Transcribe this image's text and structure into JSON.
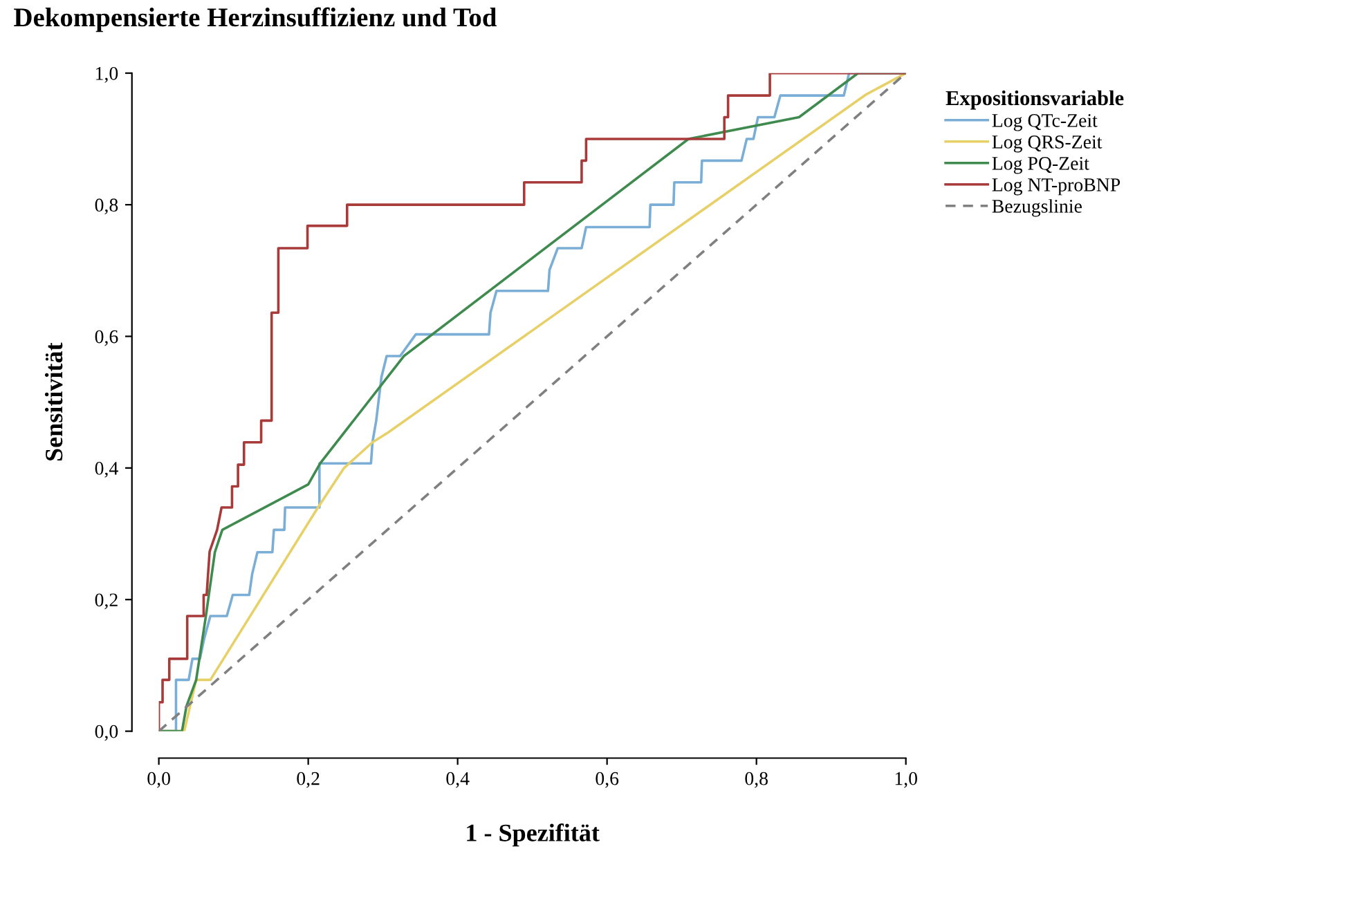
{
  "chart_data": {
    "type": "line",
    "title": "Dekompensierte Herzinsuffizienz und Tod",
    "xlabel": "1 - Spezifität",
    "ylabel": "Sensitivität",
    "legend_title": "Expositionsvariable",
    "legend": "right",
    "grid": false,
    "xlim": [
      0,
      1
    ],
    "ylim": [
      0,
      1
    ],
    "xticks": [
      {
        "value": 0,
        "label": "0,0"
      },
      {
        "value": 0.2,
        "label": "0,2"
      },
      {
        "value": 0.4,
        "label": "0,4"
      },
      {
        "value": 0.6,
        "label": "0,6"
      },
      {
        "value": 0.8,
        "label": "0,8"
      },
      {
        "value": 1,
        "label": "1,0"
      }
    ],
    "yticks": [
      {
        "value": 0,
        "label": "0,0"
      },
      {
        "value": 0.2,
        "label": "0,2"
      },
      {
        "value": 0.4,
        "label": "0,4"
      },
      {
        "value": 0.6,
        "label": "0,6"
      },
      {
        "value": 0.8,
        "label": "0,8"
      },
      {
        "value": 1,
        "label": "1,0"
      }
    ],
    "series": [
      {
        "name": "Log QTc-Zeit",
        "color": "#7aaed6",
        "line_style": "solid",
        "x": [
          0,
          0.023,
          0.023,
          0.04,
          0.045,
          0.055,
          0.061,
          0.069,
          0.091,
          0.099,
          0.121,
          0.125,
          0.132,
          0.152,
          0.154,
          0.168,
          0.169,
          0.215,
          0.215,
          0.284,
          0.286,
          0.291,
          0.298,
          0.305,
          0.323,
          0.344,
          0.442,
          0.444,
          0.452,
          0.521,
          0.523,
          0.534,
          0.566,
          0.572,
          0.657,
          0.658,
          0.689,
          0.69,
          0.726,
          0.727,
          0.78,
          0.787,
          0.796,
          0.802,
          0.824,
          0.832,
          0.917,
          0.924,
          1.0
        ],
        "values": [
          0,
          0,
          0.078,
          0.078,
          0.11,
          0.11,
          0.142,
          0.175,
          0.175,
          0.207,
          0.207,
          0.239,
          0.272,
          0.272,
          0.306,
          0.306,
          0.34,
          0.34,
          0.407,
          0.407,
          0.439,
          0.472,
          0.538,
          0.57,
          0.57,
          0.603,
          0.603,
          0.636,
          0.669,
          0.669,
          0.701,
          0.734,
          0.734,
          0.766,
          0.766,
          0.8,
          0.8,
          0.834,
          0.834,
          0.867,
          0.867,
          0.9,
          0.9,
          0.933,
          0.933,
          0.966,
          0.966,
          1.0,
          1.0
        ]
      },
      {
        "name": "Log QRS-Zeit",
        "color": "#e8d068",
        "line_style": "solid",
        "x": [
          0,
          0.034,
          0.05,
          0.069,
          0.213,
          0.248,
          0.286,
          0.307,
          0.946,
          1.0
        ],
        "values": [
          0,
          0,
          0.078,
          0.078,
          0.34,
          0.4,
          0.439,
          0.454,
          0.967,
          1.0
        ]
      },
      {
        "name": "Log PQ-Zeit",
        "color": "#3f8a4e",
        "line_style": "solid",
        "x": [
          0,
          0.031,
          0.037,
          0.05,
          0.063,
          0.075,
          0.085,
          0.2,
          0.216,
          0.328,
          0.709,
          0.857,
          0.936,
          1.0
        ],
        "values": [
          0,
          0,
          0.038,
          0.078,
          0.175,
          0.272,
          0.306,
          0.375,
          0.407,
          0.57,
          0.9,
          0.933,
          1.0,
          1.0
        ]
      },
      {
        "name": "Log NT-proBNP",
        "color": "#a83a3a",
        "line_style": "solid",
        "x": [
          0,
          0,
          0.005,
          0.005,
          0.014,
          0.014,
          0.038,
          0.038,
          0.06,
          0.06,
          0.064,
          0.068,
          0.078,
          0.084,
          0.098,
          0.098,
          0.106,
          0.106,
          0.114,
          0.114,
          0.137,
          0.137,
          0.151,
          0.151,
          0.16,
          0.16,
          0.199,
          0.199,
          0.252,
          0.252,
          0.489,
          0.489,
          0.566,
          0.566,
          0.572,
          0.572,
          0.757,
          0.757,
          0.762,
          0.762,
          0.818,
          0.818,
          1.0
        ],
        "values": [
          0,
          0.044,
          0.044,
          0.078,
          0.078,
          0.11,
          0.11,
          0.175,
          0.175,
          0.207,
          0.207,
          0.273,
          0.306,
          0.34,
          0.34,
          0.372,
          0.372,
          0.405,
          0.405,
          0.439,
          0.439,
          0.472,
          0.472,
          0.636,
          0.636,
          0.734,
          0.734,
          0.768,
          0.768,
          0.8,
          0.8,
          0.834,
          0.834,
          0.867,
          0.867,
          0.9,
          0.9,
          0.933,
          0.933,
          0.966,
          0.966,
          1.0,
          1.0
        ]
      },
      {
        "name": "Bezugslinie",
        "color": "#808080",
        "line_style": "dashed",
        "x": [
          0,
          1
        ],
        "values": [
          0,
          1
        ]
      }
    ]
  }
}
